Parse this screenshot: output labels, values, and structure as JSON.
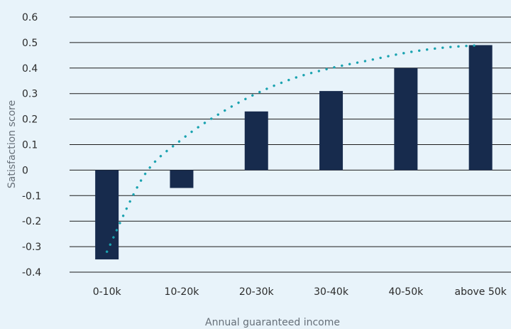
{
  "chart_data": {
    "type": "bar",
    "categories": [
      "0-10k",
      "10-20k",
      "20-30k",
      "30-40k",
      "40-50k",
      "above 50k"
    ],
    "series": [
      {
        "values": [
          -0.35,
          -0.07,
          0.23,
          0.31,
          0.4,
          0.49
        ]
      }
    ],
    "trendline": {
      "style": "dotted",
      "points": [
        [
          1,
          -0.32
        ],
        [
          1.5,
          -0.02
        ],
        [
          2,
          0.12
        ],
        [
          2.5,
          0.22
        ],
        [
          3,
          0.3
        ],
        [
          3.5,
          0.36
        ],
        [
          4,
          0.4
        ],
        [
          4.5,
          0.43
        ],
        [
          5,
          0.46
        ],
        [
          5.5,
          0.48
        ],
        [
          6,
          0.49
        ]
      ]
    },
    "xlabel": "Annual guaranteed income",
    "ylabel": "Satisfaction score",
    "ylim": [
      -0.4,
      0.6
    ],
    "yticks": [
      "0.6",
      "0.5",
      "0.4",
      "0.3",
      "0.2",
      "0.1",
      "0",
      "-0.1",
      "-0.2",
      "-0.3",
      "-0.4"
    ],
    "grid": "horizontal",
    "colors": {
      "bar": "#172b4d",
      "trendline": "#1aa3b0",
      "grid": "#1c1c1c",
      "background": "#e8f3fa"
    }
  }
}
